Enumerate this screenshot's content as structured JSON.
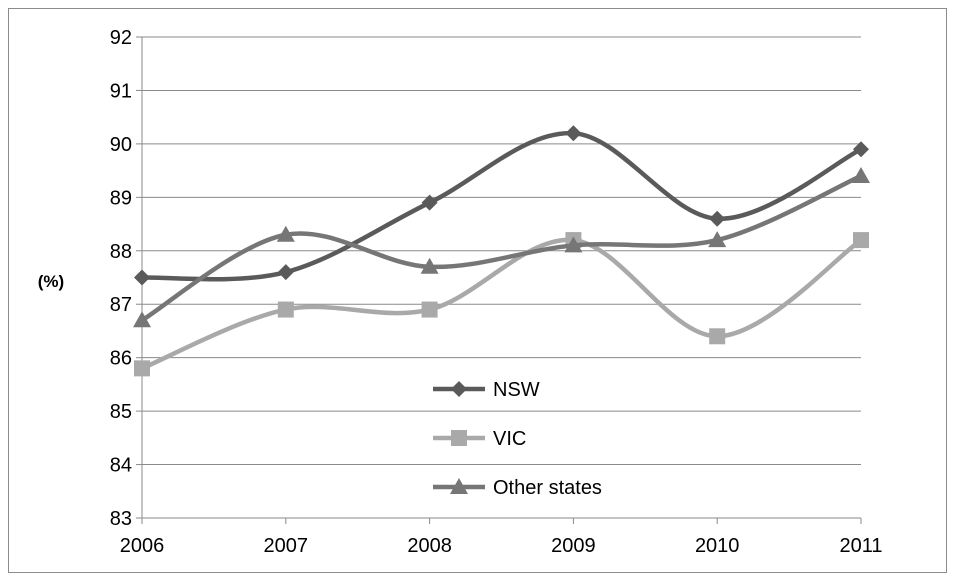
{
  "chart_data": {
    "type": "line",
    "title": "",
    "xlabel": "",
    "ylabel": "(%)",
    "categories": [
      "2006",
      "2007",
      "2008",
      "2009",
      "2010",
      "2011"
    ],
    "ylim": [
      83,
      92
    ],
    "yticks": [
      83,
      84,
      85,
      86,
      87,
      88,
      89,
      90,
      91,
      92
    ],
    "grid": "horizontal",
    "smooth": true,
    "legend_position": "center-bottom",
    "series": [
      {
        "name": "NSW",
        "marker": "diamond",
        "color": "#5a5a5a",
        "values": [
          87.5,
          87.6,
          88.9,
          90.2,
          88.6,
          89.9
        ]
      },
      {
        "name": "VIC",
        "marker": "square",
        "color": "#a9a9a9",
        "values": [
          85.8,
          86.9,
          86.9,
          88.2,
          86.4,
          88.2
        ]
      },
      {
        "name": "Other states",
        "marker": "triangle",
        "color": "#767676",
        "values": [
          86.7,
          88.3,
          87.7,
          88.1,
          88.2,
          89.4
        ]
      }
    ]
  }
}
